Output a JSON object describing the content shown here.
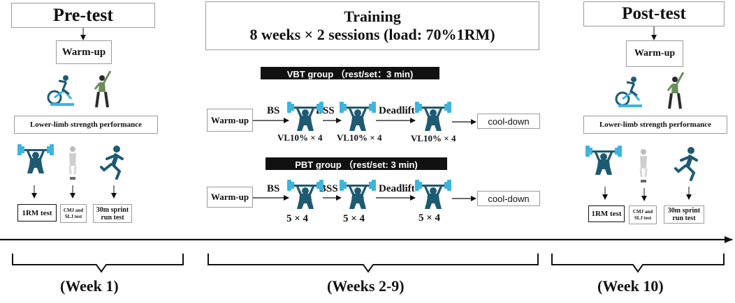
{
  "pretest": {
    "title": "Pre-test",
    "warmup": "Warm-up",
    "strength": "Lower-limb strength performance",
    "tests": [
      "1RM test",
      "CMJ and SLJ test",
      "30m sprint run test"
    ],
    "period": "(Week 1)"
  },
  "training": {
    "title_line1": "Training",
    "title_line2": "8 weeks × 2 sessions (load: 70%1RM)",
    "period": "(Weeks 2-9)",
    "vbt": {
      "header": "VBT group （rest/set：3 min)",
      "start": "Warm-up",
      "exercises": [
        "BS",
        "BSS",
        "Deadlift"
      ],
      "volumes": [
        "VL10% × 4",
        "VL10% × 4",
        "VL10% × 4"
      ],
      "end": "cool-down"
    },
    "pbt": {
      "header": "PBT group （rest/set: 3 min)",
      "start": "Warm-up",
      "exercises": [
        "BS",
        "BSS",
        "Deadlift"
      ],
      "volumes": [
        "5 × 4",
        "5 × 4",
        "5 × 4"
      ],
      "end": "cool-down"
    }
  },
  "posttest": {
    "title": "Post-test",
    "warmup": "Warm-up",
    "strength": "Lower-limb strength performance",
    "tests": [
      "1RM test",
      "CMJ and SLJ test",
      "30m sprint run test"
    ],
    "period": "(Week 10)"
  },
  "colors": {
    "icon": "#1e5a72",
    "accent": "#3fb4dc",
    "bar": "#111111",
    "athlete": "#6c8c5a"
  }
}
